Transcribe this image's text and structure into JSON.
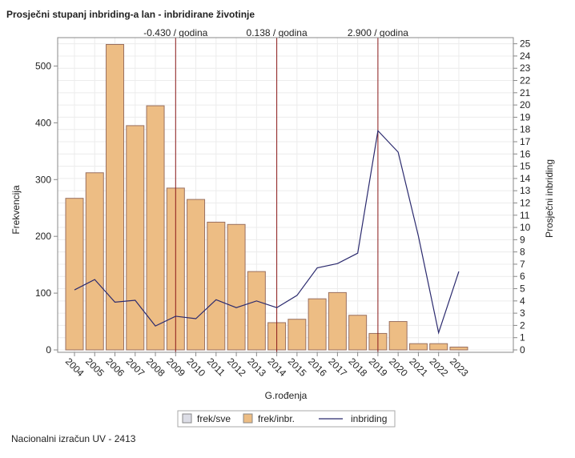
{
  "chart_data": {
    "type": "bar",
    "title": "Prosječni stupanj inbriding-a lan - inbridirane životinje",
    "x_label": "G.rođenja",
    "y_label": "Frekvencija",
    "y2_label": "Prosječni inbriding",
    "footer": "Nacionalni izračun UV - 2413",
    "categories": [
      "2004",
      "2005",
      "2006",
      "2007",
      "2008",
      "2009",
      "2010",
      "2011",
      "2012",
      "2013",
      "2014",
      "2015",
      "2016",
      "2017",
      "2018",
      "2019",
      "2020",
      "2021",
      "2022",
      "2023"
    ],
    "series": [
      {
        "name": "frek/inbr.",
        "color": "#edbd84",
        "type": "bar",
        "values": [
          267,
          312,
          538,
          395,
          430,
          285,
          265,
          225,
          221,
          138,
          48,
          54,
          90,
          101,
          61,
          29,
          50,
          11,
          11,
          5
        ]
      },
      {
        "name": "inbriding",
        "color": "#2b2a6e",
        "type": "line",
        "axis": "y2",
        "values": [
          4.9,
          5.75,
          3.9,
          4.05,
          1.95,
          2.75,
          2.55,
          4.1,
          3.45,
          4.0,
          3.45,
          4.45,
          6.7,
          7.05,
          7.9,
          17.9,
          16.15,
          9.3,
          1.4,
          6.4
        ]
      }
    ],
    "legend": [
      {
        "name": "frek/sve",
        "color": "#dcdde6"
      },
      {
        "name": "frek/inbr.",
        "color": "#edbd84"
      },
      {
        "name": "inbriding",
        "color": "#2b2a6e"
      }
    ],
    "reference_lines": [
      {
        "category": "2009",
        "label": "-0.430 / godina"
      },
      {
        "category": "2014",
        "label": "0.138 / godina"
      },
      {
        "category": "2019",
        "label": "2.900 / godina"
      }
    ],
    "reference_color": "#8b1a1a",
    "ylim": [
      0,
      550
    ],
    "yticks": [
      0,
      100,
      200,
      300,
      400,
      500
    ],
    "y2lim": [
      0,
      25.5
    ],
    "y2ticks": [
      0,
      1,
      2,
      3,
      4,
      5,
      6,
      7,
      8,
      9,
      10,
      11,
      12,
      13,
      14,
      15,
      16,
      17,
      18,
      19,
      20,
      21,
      22,
      23,
      24,
      25
    ],
    "grid": true
  }
}
